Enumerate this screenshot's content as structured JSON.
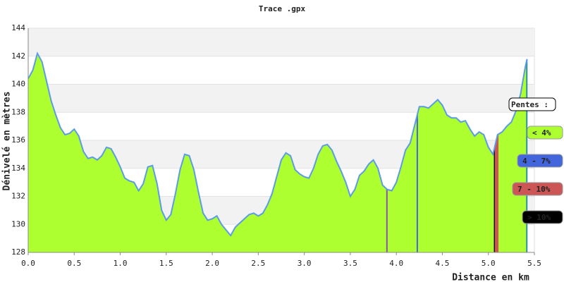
{
  "chart_data": {
    "type": "area",
    "title": "Trace .gpx",
    "x_label": "Distance en km",
    "y_label": "Dénivelé en mètres",
    "x": [
      0.0,
      0.05,
      0.1,
      0.15,
      0.2,
      0.25,
      0.3,
      0.35,
      0.4,
      0.45,
      0.5,
      0.55,
      0.6,
      0.65,
      0.7,
      0.75,
      0.8,
      0.85,
      0.9,
      0.95,
      1.0,
      1.05,
      1.1,
      1.15,
      1.2,
      1.25,
      1.3,
      1.35,
      1.4,
      1.45,
      1.5,
      1.55,
      1.6,
      1.65,
      1.7,
      1.75,
      1.8,
      1.85,
      1.9,
      1.95,
      2.0,
      2.05,
      2.1,
      2.15,
      2.2,
      2.25,
      2.3,
      2.35,
      2.4,
      2.45,
      2.5,
      2.55,
      2.6,
      2.65,
      2.7,
      2.75,
      2.8,
      2.85,
      2.9,
      2.95,
      3.0,
      3.05,
      3.1,
      3.15,
      3.2,
      3.25,
      3.3,
      3.35,
      3.4,
      3.45,
      3.5,
      3.55,
      3.6,
      3.65,
      3.7,
      3.75,
      3.8,
      3.85,
      3.9,
      3.95,
      4.0,
      4.05,
      4.1,
      4.15,
      4.2,
      4.25,
      4.3,
      4.35,
      4.4,
      4.45,
      4.5,
      4.55,
      4.6,
      4.65,
      4.7,
      4.75,
      4.8,
      4.85,
      4.9,
      4.95,
      5.0,
      5.05,
      5.1,
      5.15,
      5.2,
      5.25,
      5.3,
      5.35,
      5.4,
      5.42
    ],
    "values": [
      140.4,
      141.0,
      142.2,
      141.6,
      140.2,
      138.8,
      137.8,
      136.9,
      136.4,
      136.5,
      136.8,
      136.3,
      135.2,
      134.7,
      134.8,
      134.6,
      134.9,
      135.5,
      135.4,
      134.8,
      134.1,
      133.3,
      133.1,
      133.0,
      132.4,
      132.9,
      134.1,
      134.2,
      132.9,
      131.0,
      130.3,
      130.7,
      132.2,
      133.9,
      135.0,
      134.9,
      133.9,
      132.3,
      130.8,
      130.3,
      130.4,
      130.6,
      130.0,
      129.6,
      129.2,
      129.8,
      130.1,
      130.4,
      130.7,
      130.8,
      130.6,
      130.8,
      131.4,
      132.2,
      133.4,
      134.6,
      135.1,
      134.9,
      133.9,
      133.6,
      133.4,
      133.3,
      134.0,
      135.0,
      135.6,
      135.7,
      135.3,
      134.5,
      133.8,
      133.0,
      132.0,
      132.5,
      133.5,
      133.8,
      134.3,
      134.6,
      134.0,
      132.8,
      132.5,
      132.4,
      133.0,
      134.1,
      135.3,
      135.8,
      137.1,
      138.4,
      138.4,
      138.3,
      138.6,
      138.9,
      138.5,
      137.8,
      137.6,
      137.6,
      137.3,
      137.4,
      136.8,
      136.3,
      136.6,
      136.4,
      135.5,
      135.0,
      136.4,
      136.6,
      137.0,
      137.3,
      138.1,
      139.3,
      141.2,
      141.8
    ],
    "color": "#adff2f",
    "line_color": "#5b9be8",
    "xlim": [
      0,
      5.5
    ],
    "ylim": [
      128,
      144
    ],
    "xticks": [
      {
        "value": 0,
        "label": "0.0"
      },
      {
        "value": 0.5,
        "label": "0.5"
      },
      {
        "value": 1,
        "label": "1.0"
      },
      {
        "value": 1.5,
        "label": "1.5"
      },
      {
        "value": 2,
        "label": "2.0"
      },
      {
        "value": 2.5,
        "label": "2.5"
      },
      {
        "value": 3,
        "label": "3.0"
      },
      {
        "value": 3.5,
        "label": "3.5"
      },
      {
        "value": 4,
        "label": "4.0"
      },
      {
        "value": 4.5,
        "label": "4.5"
      },
      {
        "value": 5,
        "label": "5.0"
      },
      {
        "value": 5.5,
        "label": "5.5"
      }
    ],
    "yticks": [
      128,
      130,
      132,
      134,
      136,
      138,
      140,
      142,
      144
    ],
    "grid": "bands",
    "legend_title": "Pentes :",
    "slope_classes": [
      {
        "label": "< 4%",
        "color": "#adff2f"
      },
      {
        "label": "4 - 7%",
        "color": "#4466dd"
      },
      {
        "label": "7 - 10%",
        "color": "#cc5555"
      },
      {
        "label": "> 10%",
        "color": "#000000"
      }
    ],
    "slope_segments": [
      {
        "x0": 3.89,
        "x1": 3.9,
        "color": "#8855aa"
      },
      {
        "x0": 4.22,
        "x1": 4.23,
        "color": "#4466dd"
      },
      {
        "x0": 5.06,
        "x1": 5.07,
        "color": "#000000"
      },
      {
        "x0": 5.07,
        "x1": 5.11,
        "color": "#cc5555"
      },
      {
        "x0": 5.41,
        "x1": 5.42,
        "color": "#2f8f9f"
      }
    ]
  }
}
